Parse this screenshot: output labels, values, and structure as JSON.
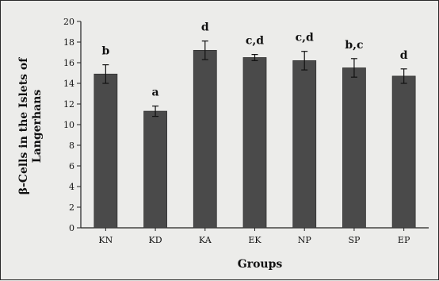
{
  "chart_data": {
    "type": "bar",
    "xlabel": "Groups",
    "ylabel": "β-Cells in the Islets of Langerhans",
    "ylabel_lines": [
      "β-Cells in the Islets of",
      "Langerhans"
    ],
    "ylim": [
      0,
      20
    ],
    "yticks": [
      0,
      2,
      4,
      6,
      8,
      10,
      12,
      14,
      16,
      18,
      20
    ],
    "grid": false,
    "legend": "none",
    "categories": [
      "KN",
      "KD",
      "KA",
      "EK",
      "NP",
      "SP",
      "EP"
    ],
    "values": [
      14.9,
      11.3,
      17.2,
      16.5,
      16.2,
      15.5,
      14.7
    ],
    "errors": [
      0.9,
      0.5,
      0.9,
      0.3,
      0.9,
      0.9,
      0.7
    ],
    "labels": [
      "b",
      "a",
      "d",
      "c,d",
      "c,d",
      "b,c",
      "d"
    ],
    "colors": {
      "bar": "#4a4a4a",
      "bar_edge": "#333333",
      "axis": "#222222",
      "error": "#111111"
    }
  }
}
